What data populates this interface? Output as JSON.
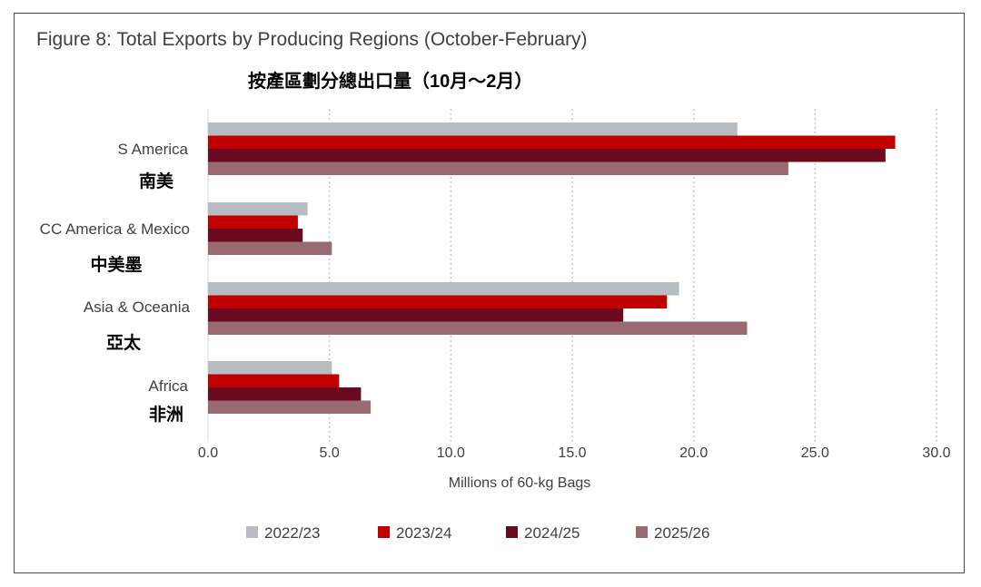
{
  "title": "Figure 8: Total Exports by Producing Regions (October-February)",
  "subtitle": "按產區劃分總出口量（10月～2月）",
  "chart_data": {
    "type": "bar",
    "orientation": "horizontal",
    "categories": [
      "S America",
      "CC America & Mexico",
      "Asia & Oceania",
      "Africa"
    ],
    "category_labels_secondary": [
      "南美",
      "中美墨",
      "亞太",
      "非洲"
    ],
    "series": [
      {
        "name": "2022/23",
        "color": "#b7bcc3",
        "values": [
          21.8,
          4.1,
          19.4,
          5.1
        ]
      },
      {
        "name": "2023/24",
        "color": "#c00000",
        "values": [
          28.3,
          3.7,
          18.9,
          5.4
        ]
      },
      {
        "name": "2024/25",
        "color": "#6b0a1e",
        "values": [
          27.9,
          3.9,
          17.1,
          6.3
        ]
      },
      {
        "name": "2025/26",
        "color": "#9a6a72",
        "values": [
          23.9,
          5.1,
          22.2,
          6.7
        ]
      }
    ],
    "xlabel": "Millions of 60-kg Bags",
    "xlim": [
      0,
      30
    ],
    "ticks": [
      "0.0",
      "5.0",
      "10.0",
      "15.0",
      "20.0",
      "25.0",
      "30.0"
    ],
    "grid": "vertical dotted",
    "legend": "bottom"
  }
}
